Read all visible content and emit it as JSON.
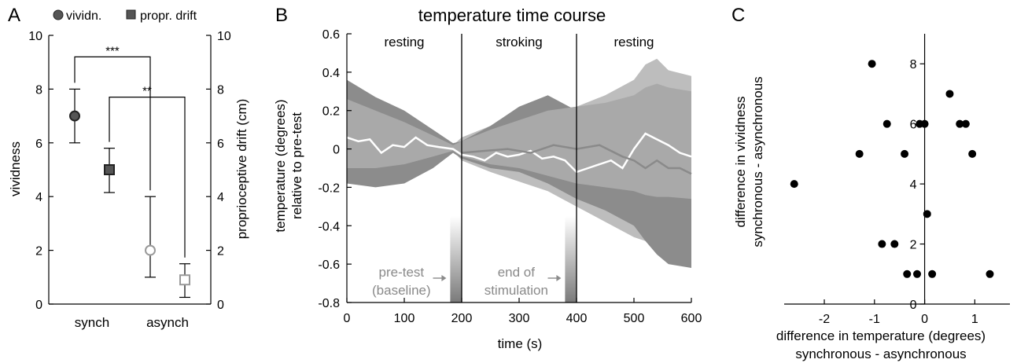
{
  "charts": [
    {
      "panel_letter": "A",
      "type": "scatter",
      "legend": {
        "entries": [
          {
            "marker": "circle",
            "label": "vividn."
          },
          {
            "marker": "square",
            "label": "propr. drift"
          }
        ],
        "position": "top"
      },
      "categories": [
        "synch",
        "asynch"
      ],
      "ylabel_left": "vividness",
      "ylabel_right": "proprioceptive drift (cm)",
      "ylim_left": [
        0,
        10
      ],
      "ylim_right": [
        0,
        10
      ],
      "yticks_left": [
        "0",
        "2",
        "4",
        "6",
        "8",
        "10"
      ],
      "yticks_right": [
        "0",
        "2",
        "4",
        "6",
        "8",
        "10"
      ],
      "series": [
        {
          "name": "vividn.",
          "marker": "circle",
          "axis": "left",
          "points": [
            {
              "category": "synch",
              "value": 7,
              "low": 6,
              "high": 8,
              "filled": true
            },
            {
              "category": "asynch",
              "value": 2,
              "low": 1,
              "high": 4,
              "filled": false
            }
          ]
        },
        {
          "name": "propr. drift",
          "marker": "square",
          "axis": "right",
          "points": [
            {
              "category": "synch",
              "value": 5,
              "low": 4.15,
              "high": 5.8,
              "filled": true
            },
            {
              "category": "asynch",
              "value": 0.9,
              "low": 0.25,
              "high": 1.5,
              "filled": false
            }
          ]
        }
      ],
      "significance": [
        {
          "label": "***",
          "from": "vividn.",
          "level": 9.2
        },
        {
          "label": "**",
          "from": "propr. drift",
          "level": 7.7
        }
      ]
    },
    {
      "panel_letter": "B",
      "type": "area",
      "title": "temperature time course",
      "xlabel": "time (s)",
      "ylabel_line1": "temperature (degrees)",
      "ylabel_line2": "relative to pre-test",
      "xlim": [
        0,
        600
      ],
      "ylim": [
        -0.8,
        0.6
      ],
      "xticks": [
        "0",
        "100",
        "200",
        "300",
        "400",
        "500",
        "600"
      ],
      "yticks": [
        "-0.8",
        "-0.6",
        "-0.4",
        "-0.2",
        "0",
        "0.2",
        "0.4",
        "0.6"
      ],
      "phase_boundaries": [
        200,
        400
      ],
      "phases": [
        {
          "label": "resting",
          "center": 100
        },
        {
          "label": "stroking",
          "center": 300
        },
        {
          "label": "resting",
          "center": 500
        }
      ],
      "annotations": [
        {
          "line1": "pre-test",
          "line2": "(baseline)",
          "target": 190
        },
        {
          "line1": "end of",
          "line2": "stimulation",
          "target": 390
        }
      ],
      "bands": [
        {
          "shade": "#bdbdbd",
          "x": [
            0,
            50,
            100,
            150,
            185,
            200,
            250,
            300,
            350,
            400,
            450,
            500,
            520,
            540,
            560,
            600
          ],
          "upper": [
            0.22,
            0.16,
            0.11,
            0.05,
            0.02,
            0.06,
            0.12,
            0.16,
            0.2,
            0.22,
            0.28,
            0.36,
            0.44,
            0.47,
            0.41,
            0.38
          ],
          "lower": [
            -0.14,
            -0.12,
            -0.1,
            -0.05,
            -0.01,
            -0.06,
            -0.12,
            -0.17,
            -0.22,
            -0.3,
            -0.38,
            -0.46,
            -0.48,
            -0.46,
            -0.43,
            -0.42
          ]
        },
        {
          "shade": "#8c8c8c",
          "x": [
            0,
            50,
            100,
            150,
            185,
            200,
            250,
            300,
            350,
            400,
            450,
            500,
            520,
            540,
            560,
            600
          ],
          "upper": [
            0.36,
            0.27,
            0.2,
            0.1,
            0.03,
            0.04,
            0.12,
            0.22,
            0.28,
            0.2,
            0.2,
            0.16,
            0.1,
            0.05,
            0.08,
            0.22
          ],
          "lower": [
            -0.18,
            -0.2,
            -0.18,
            -0.1,
            -0.02,
            -0.05,
            -0.1,
            -0.12,
            -0.18,
            -0.26,
            -0.32,
            -0.4,
            -0.48,
            -0.55,
            -0.6,
            -0.62
          ]
        },
        {
          "shade": "#a9a9a9",
          "x": [
            0,
            50,
            100,
            150,
            185,
            200,
            250,
            300,
            350,
            400,
            450,
            500,
            520,
            540,
            560,
            600
          ],
          "upper": [
            0.26,
            0.2,
            0.14,
            0.07,
            0.02,
            0.04,
            0.1,
            0.15,
            0.2,
            0.22,
            0.24,
            0.28,
            0.32,
            0.34,
            0.32,
            0.3
          ],
          "lower": [
            -0.1,
            -0.1,
            -0.08,
            -0.04,
            -0.01,
            -0.04,
            -0.08,
            -0.1,
            -0.14,
            -0.18,
            -0.2,
            -0.22,
            -0.24,
            -0.25,
            -0.25,
            -0.26
          ]
        }
      ],
      "lines": [
        {
          "color": "#ffffff",
          "x": [
            0,
            20,
            40,
            60,
            80,
            100,
            120,
            140,
            160,
            185,
            200,
            220,
            240,
            260,
            280,
            300,
            320,
            340,
            360,
            380,
            400,
            420,
            440,
            460,
            480,
            500,
            520,
            540,
            560,
            580,
            600
          ],
          "y": [
            0.06,
            0.04,
            0.05,
            -0.02,
            0.02,
            0.01,
            0.06,
            0.02,
            0.01,
            0.0,
            -0.03,
            -0.04,
            -0.06,
            -0.02,
            -0.04,
            -0.03,
            -0.01,
            -0.05,
            -0.04,
            -0.06,
            -0.12,
            -0.1,
            -0.08,
            -0.06,
            -0.1,
            0.0,
            0.08,
            0.05,
            0.02,
            -0.02,
            -0.04
          ]
        },
        {
          "color": "#8a8a8a",
          "x": [
            200,
            240,
            280,
            320,
            360,
            400,
            440,
            480,
            500,
            520,
            540,
            560,
            580,
            600
          ],
          "y": [
            -0.02,
            -0.01,
            0.0,
            -0.02,
            0.02,
            0.0,
            0.02,
            -0.04,
            -0.06,
            -0.1,
            -0.06,
            -0.1,
            -0.1,
            -0.13
          ]
        }
      ]
    },
    {
      "panel_letter": "C",
      "type": "scatter",
      "xlabel_line1": "difference in temperature (degrees)",
      "xlabel_line2": "synchronous - asynchronous",
      "ylabel_line1": "difference in vividness",
      "ylabel_line2": "synchronous - asynchronous",
      "xlim": [
        -2.8,
        1.7
      ],
      "ylim": [
        0,
        9
      ],
      "xticks": [
        "-2",
        "-1",
        "0",
        "1"
      ],
      "yticks": [
        "0",
        "2",
        "4",
        "6",
        "8"
      ],
      "points": [
        {
          "x": -2.6,
          "y": 4
        },
        {
          "x": -1.05,
          "y": 8
        },
        {
          "x": -1.3,
          "y": 5
        },
        {
          "x": -0.75,
          "y": 6
        },
        {
          "x": -0.85,
          "y": 2
        },
        {
          "x": -0.6,
          "y": 2
        },
        {
          "x": -0.4,
          "y": 5
        },
        {
          "x": -0.1,
          "y": 6
        },
        {
          "x": 0.0,
          "y": 6
        },
        {
          "x": -0.35,
          "y": 1
        },
        {
          "x": -0.15,
          "y": 1
        },
        {
          "x": 0.05,
          "y": 3
        },
        {
          "x": 0.15,
          "y": 1
        },
        {
          "x": 0.5,
          "y": 7
        },
        {
          "x": 0.7,
          "y": 6
        },
        {
          "x": 0.82,
          "y": 6
        },
        {
          "x": 0.95,
          "y": 5
        },
        {
          "x": 1.3,
          "y": 1
        }
      ]
    }
  ]
}
